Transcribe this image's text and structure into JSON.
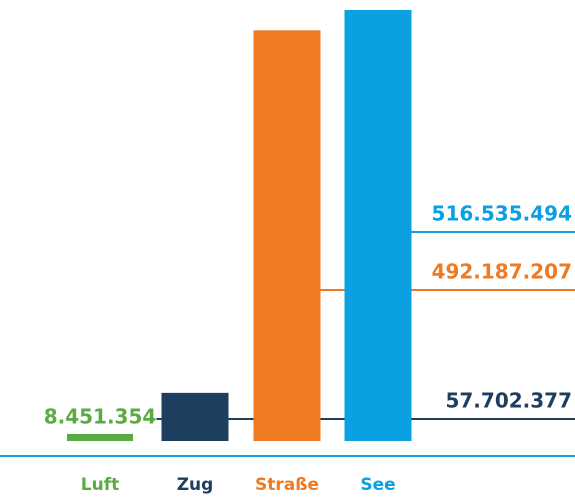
{
  "chart_data": {
    "type": "bar",
    "categories": [
      "Luft",
      "Zug",
      "Straße",
      "See"
    ],
    "values": [
      8451354,
      57702377,
      492187207,
      516535494
    ],
    "value_labels": [
      "8.451.354",
      "57.702.377",
      "492.187.207",
      "516.535.494"
    ],
    "colors": [
      "#5bab45",
      "#1d3e5f",
      "#ee7a22",
      "#0aa0e1"
    ]
  }
}
